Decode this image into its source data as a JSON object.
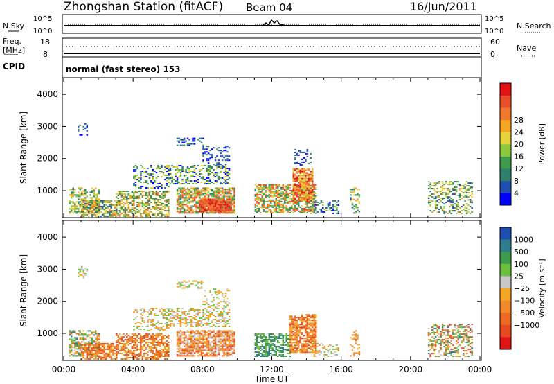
{
  "header": {
    "station": "Zhongshan Station (fitACF)",
    "beam": "Beam 04",
    "date": "16/Jun/2011"
  },
  "strips": {
    "nsky_label": "N.Sky",
    "nsky_tick_top": "10^5",
    "nsky_tick_bottom": "10^0",
    "nsearch_label": "N.Search",
    "nsearch_tick_top": "10^5",
    "nsearch_tick_bottom": "10^0",
    "freq_label_1": "Freq.",
    "freq_label_2": "[MHz]",
    "freq_tick_top": "18",
    "freq_tick_bottom": "8",
    "nave_label": "Nave",
    "nave_tick_top": "60",
    "nave_tick_bottom": "0",
    "cpid_label": "CPID",
    "cpid_value": "normal (fast stereo) 153"
  },
  "chart_data": [
    {
      "type": "heatmap",
      "panel": "power",
      "xlabel": "",
      "ylabel": "Slant Range [km]",
      "xlim": [
        "00:00",
        "24:00"
      ],
      "ylim": [
        180,
        4500
      ],
      "yticks": [
        1000,
        2000,
        3000,
        4000
      ],
      "colorbar": {
        "label": "Power [dB]",
        "ticks": [
          "4",
          "8",
          "12",
          "16",
          "20",
          "24",
          "28"
        ],
        "colors": [
          "#0000ff",
          "#1f4fb0",
          "#2f7f6a",
          "#3e9a4d",
          "#8cc83c",
          "#e6d23c",
          "#f5a623",
          "#f0782d",
          "#e84e2a",
          "#e01414"
        ]
      },
      "blobs": [
        {
          "t0": 0.3,
          "t1": 2.0,
          "r0": 300,
          "r1": 1100,
          "c": [
            2,
            6
          ],
          "d": 0.55
        },
        {
          "t0": 1.0,
          "t1": 3.0,
          "r0": 200,
          "r1": 700,
          "c": [
            1,
            7
          ],
          "d": 0.7
        },
        {
          "t0": 3.0,
          "t1": 6.0,
          "r0": 200,
          "r1": 1000,
          "c": [
            2,
            7
          ],
          "d": 0.6
        },
        {
          "t0": 4.0,
          "t1": 6.0,
          "r0": 1100,
          "r1": 1800,
          "c": [
            0,
            5
          ],
          "d": 0.35
        },
        {
          "t0": 6.0,
          "t1": 9.5,
          "r0": 1200,
          "r1": 1800,
          "c": [
            0,
            5
          ],
          "d": 0.45
        },
        {
          "t0": 6.5,
          "t1": 9.8,
          "r0": 300,
          "r1": 1100,
          "c": [
            2,
            8
          ],
          "d": 0.75
        },
        {
          "t0": 7.8,
          "t1": 9.6,
          "r0": 350,
          "r1": 750,
          "c": [
            7,
            9
          ],
          "d": 0.9
        },
        {
          "t0": 6.5,
          "t1": 8.0,
          "r0": 2400,
          "r1": 2650,
          "c": [
            0,
            3
          ],
          "d": 0.45
        },
        {
          "t0": 8.0,
          "t1": 9.5,
          "r0": 1800,
          "r1": 2400,
          "c": [
            0,
            2
          ],
          "d": 0.3
        },
        {
          "t0": 11.0,
          "t1": 14.5,
          "r0": 300,
          "r1": 1200,
          "c": [
            2,
            8
          ],
          "d": 0.65
        },
        {
          "t0": 13.2,
          "t1": 14.3,
          "r0": 700,
          "r1": 1700,
          "c": [
            5,
            9
          ],
          "d": 0.75
        },
        {
          "t0": 13.3,
          "t1": 14.2,
          "r0": 1800,
          "r1": 2300,
          "c": [
            0,
            3
          ],
          "d": 0.3
        },
        {
          "t0": 14.2,
          "t1": 15.8,
          "r0": 300,
          "r1": 700,
          "c": [
            0,
            4
          ],
          "d": 0.35
        },
        {
          "t0": 16.5,
          "t1": 17.0,
          "r0": 300,
          "r1": 1100,
          "c": [
            1,
            6
          ],
          "d": 0.35
        },
        {
          "t0": 21.0,
          "t1": 23.5,
          "r0": 300,
          "r1": 1300,
          "c": [
            1,
            6
          ],
          "d": 0.45
        },
        {
          "t0": 0.8,
          "t1": 1.3,
          "r0": 2750,
          "r1": 3100,
          "c": [
            0,
            2
          ],
          "d": 0.35
        }
      ]
    },
    {
      "type": "heatmap",
      "panel": "velocity",
      "xlabel": "Time UT",
      "ylabel": "Slant Range [km]",
      "xlim": [
        "00:00",
        "24:00"
      ],
      "ylim": [
        180,
        4500
      ],
      "yticks": [
        1000,
        2000,
        3000,
        4000
      ],
      "xticks": [
        "00:00",
        "04:00",
        "08:00",
        "12:00",
        "16:00",
        "20:00",
        "00:00"
      ],
      "colorbar": {
        "label": "Velocity [m s⁻¹]",
        "ticks": [
          "1000",
          "500",
          "100",
          "25",
          "−25",
          "−100",
          "−500",
          "−1000"
        ],
        "colors": [
          "#1f4fb0",
          "#2e7d8c",
          "#3e9a4d",
          "#6cc040",
          "#c8c8c8",
          "#f5a623",
          "#f08a2a",
          "#ec6a24",
          "#e84a20",
          "#e01414"
        ]
      },
      "blobs": [
        {
          "t0": 0.3,
          "t1": 2.0,
          "r0": 300,
          "r1": 1100,
          "c": [
            1,
            7
          ],
          "d": 0.55
        },
        {
          "t0": 1.0,
          "t1": 3.0,
          "r0": 200,
          "r1": 700,
          "c": [
            5,
            8
          ],
          "d": 0.7
        },
        {
          "t0": 3.0,
          "t1": 6.0,
          "r0": 200,
          "r1": 1000,
          "c": [
            5,
            8
          ],
          "d": 0.6
        },
        {
          "t0": 4.0,
          "t1": 6.0,
          "r0": 1100,
          "r1": 1800,
          "c": [
            3,
            6
          ],
          "d": 0.35
        },
        {
          "t0": 6.0,
          "t1": 9.5,
          "r0": 1200,
          "r1": 1800,
          "c": [
            3,
            6
          ],
          "d": 0.45
        },
        {
          "t0": 6.5,
          "t1": 9.8,
          "r0": 300,
          "r1": 1100,
          "c": [
            4,
            8
          ],
          "d": 0.75
        },
        {
          "t0": 6.5,
          "t1": 8.0,
          "r0": 2400,
          "r1": 2650,
          "c": [
            3,
            5
          ],
          "d": 0.45
        },
        {
          "t0": 8.0,
          "t1": 9.5,
          "r0": 1800,
          "r1": 2400,
          "c": [
            3,
            5
          ],
          "d": 0.3
        },
        {
          "t0": 11.0,
          "t1": 13.0,
          "r0": 300,
          "r1": 1000,
          "c": [
            1,
            3
          ],
          "d": 0.6
        },
        {
          "t0": 13.0,
          "t1": 14.5,
          "r0": 400,
          "r1": 1600,
          "c": [
            5,
            8
          ],
          "d": 0.75
        },
        {
          "t0": 14.2,
          "t1": 15.8,
          "r0": 300,
          "r1": 700,
          "c": [
            3,
            6
          ],
          "d": 0.35
        },
        {
          "t0": 16.5,
          "t1": 17.0,
          "r0": 300,
          "r1": 1100,
          "c": [
            5,
            7
          ],
          "d": 0.35
        },
        {
          "t0": 21.0,
          "t1": 23.5,
          "r0": 300,
          "r1": 1300,
          "c": [
            1,
            8
          ],
          "d": 0.45
        },
        {
          "t0": 0.8,
          "t1": 1.3,
          "r0": 2750,
          "r1": 3100,
          "c": [
            3,
            5
          ],
          "d": 0.35
        }
      ]
    }
  ]
}
